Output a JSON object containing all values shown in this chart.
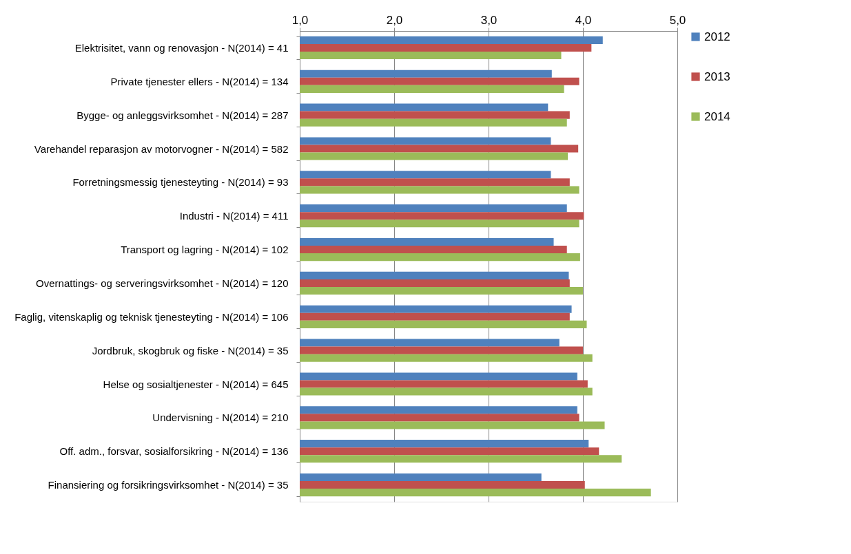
{
  "chart_data": {
    "type": "bar",
    "orientation": "horizontal",
    "categories": [
      "Elektrisitet, vann og renovasjon - N(2014) = 41",
      "Private tjenester ellers - N(2014) = 134",
      "Bygge- og anleggsvirksomhet - N(2014) = 287",
      "Varehandel reparasjon av motorvogner - N(2014) = 582",
      "Forretningsmessig tjenesteyting - N(2014) = 93",
      "Industri - N(2014) = 411",
      "Transport og lagring - N(2014) = 102",
      "Overnattings- og serveringsvirksomhet - N(2014) = 120",
      "Faglig, vitenskaplig og teknisk tjenesteyting - N(2014) = 106",
      "Jordbruk, skogbruk og fiske - N(2014) = 35",
      "Helse og sosialtjenester - N(2014) = 645",
      "Undervisning - N(2014) = 210",
      "Off. adm., forsvar, sosialforsikring - N(2014) = 136",
      "Finansiering og forsikringsvirksomhet - N(2014) = 35"
    ],
    "series": [
      {
        "name": "2012",
        "color": "#4f81bd",
        "values": [
          4.21,
          3.67,
          3.63,
          3.66,
          3.66,
          3.83,
          3.69,
          3.85,
          3.88,
          3.75,
          3.94,
          3.94,
          4.06,
          3.56
        ]
      },
      {
        "name": "2013",
        "color": "#c0504d",
        "values": [
          4.09,
          3.96,
          3.86,
          3.95,
          3.86,
          4.01,
          3.83,
          3.86,
          3.86,
          4.0,
          4.05,
          3.96,
          4.17,
          4.02
        ]
      },
      {
        "name": "2014",
        "color": "#9bbb59",
        "values": [
          3.77,
          3.8,
          3.83,
          3.84,
          3.96,
          3.96,
          3.97,
          4.0,
          4.04,
          4.1,
          4.1,
          4.23,
          4.41,
          4.72
        ]
      }
    ],
    "xlim": [
      1,
      5
    ],
    "xticks": [
      {
        "value": 1,
        "label": "1,0"
      },
      {
        "value": 2,
        "label": "2,0"
      },
      {
        "value": 3,
        "label": "3,0"
      },
      {
        "value": 4,
        "label": "4,0"
      },
      {
        "value": 5,
        "label": "5,0"
      }
    ],
    "grid": "x",
    "legend": "right"
  }
}
